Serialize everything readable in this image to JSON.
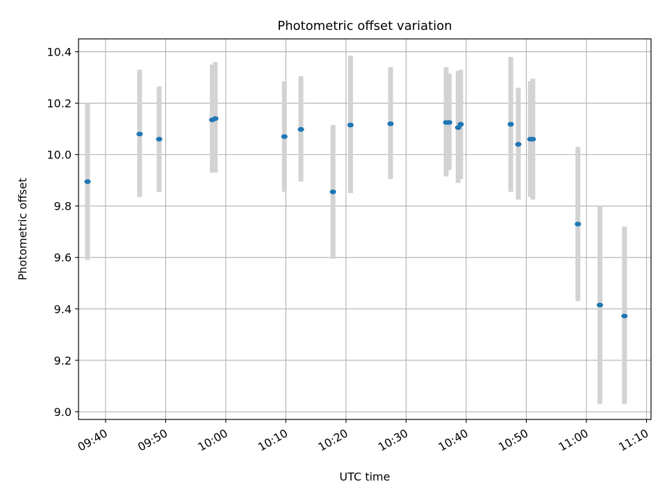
{
  "chart_data": {
    "type": "scatter",
    "title": "Photometric offset variation",
    "xlabel": "UTC time",
    "ylabel": "Photometric offset",
    "x_axis_kind": "time",
    "xlim": [
      "09:35:30",
      "11:10:45"
    ],
    "ylim": [
      8.97,
      10.45
    ],
    "grid": true,
    "colors": {
      "points": "#1f77b4",
      "errorbars": "#d3d3d3",
      "grid": "#b0b0b0"
    },
    "x_ticks": [
      "09:40",
      "09:50",
      "10:00",
      "10:10",
      "10:20",
      "10:30",
      "10:40",
      "10:50",
      "11:00",
      "11:10"
    ],
    "y_ticks": [
      "9.0",
      "9.2",
      "9.4",
      "9.6",
      "9.8",
      "10.0",
      "10.2",
      "10.4"
    ],
    "points": [
      {
        "time": "09:37:00",
        "y": 9.895,
        "err_low": 9.59,
        "err_high": 10.2
      },
      {
        "time": "09:45:40",
        "y": 10.08,
        "err_low": 9.835,
        "err_high": 10.33
      },
      {
        "time": "09:48:55",
        "y": 10.06,
        "err_low": 9.855,
        "err_high": 10.265
      },
      {
        "time": "09:57:45",
        "y": 10.135,
        "err_low": 9.93,
        "err_high": 10.35
      },
      {
        "time": "09:58:15",
        "y": 10.14,
        "err_low": 9.93,
        "err_high": 10.36
      },
      {
        "time": "10:09:45",
        "y": 10.07,
        "err_low": 9.855,
        "err_high": 10.285
      },
      {
        "time": "10:12:30",
        "y": 10.098,
        "err_low": 9.895,
        "err_high": 10.305
      },
      {
        "time": "10:17:50",
        "y": 9.855,
        "err_low": 9.595,
        "err_high": 10.115
      },
      {
        "time": "10:20:45",
        "y": 10.115,
        "err_low": 9.85,
        "err_high": 10.385
      },
      {
        "time": "10:27:25",
        "y": 10.12,
        "err_low": 9.905,
        "err_high": 10.34
      },
      {
        "time": "10:36:40",
        "y": 10.125,
        "err_low": 9.915,
        "err_high": 10.34
      },
      {
        "time": "10:37:10",
        "y": 10.125,
        "err_low": 9.94,
        "err_high": 10.315
      },
      {
        "time": "10:38:40",
        "y": 10.105,
        "err_low": 9.89,
        "err_high": 10.325
      },
      {
        "time": "10:39:05",
        "y": 10.118,
        "err_low": 9.905,
        "err_high": 10.33
      },
      {
        "time": "10:47:25",
        "y": 10.118,
        "err_low": 9.855,
        "err_high": 10.38
      },
      {
        "time": "10:48:40",
        "y": 10.04,
        "err_low": 9.825,
        "err_high": 10.26
      },
      {
        "time": "10:50:40",
        "y": 10.06,
        "err_low": 9.835,
        "err_high": 10.285
      },
      {
        "time": "10:51:05",
        "y": 10.06,
        "err_low": 9.825,
        "err_high": 10.295
      },
      {
        "time": "10:58:35",
        "y": 9.73,
        "err_low": 9.43,
        "err_high": 10.03
      },
      {
        "time": "11:02:15",
        "y": 9.415,
        "err_low": 9.03,
        "err_high": 9.8
      },
      {
        "time": "11:06:20",
        "y": 9.372,
        "err_low": 9.03,
        "err_high": 9.72
      }
    ]
  }
}
